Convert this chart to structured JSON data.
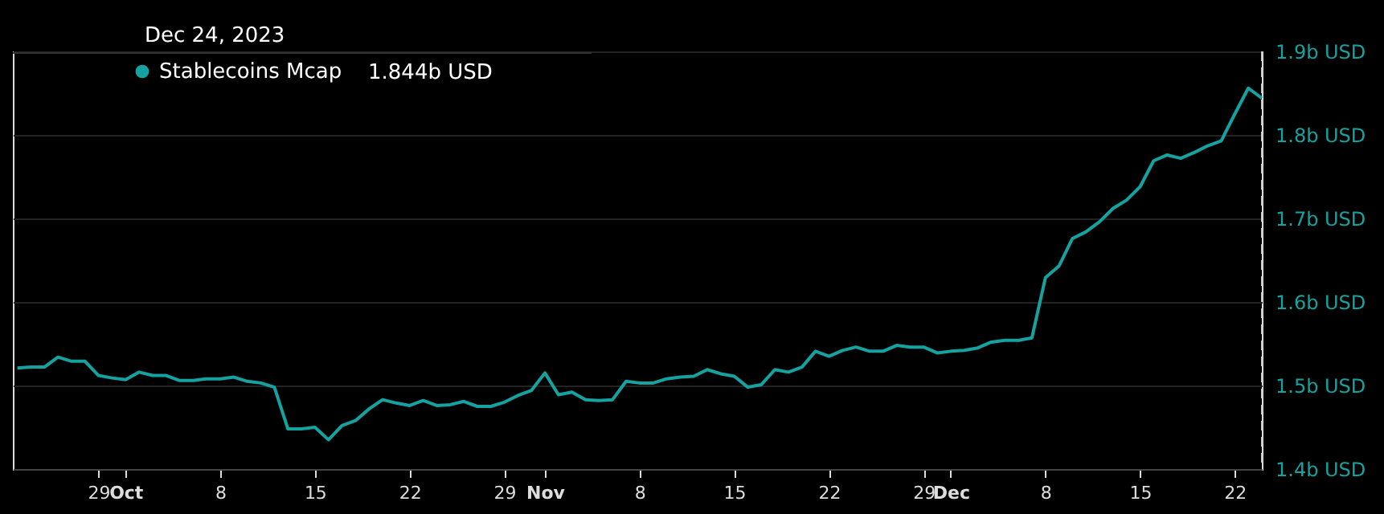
{
  "chart_data": {
    "type": "line",
    "title": "Dec 24, 2023",
    "x": [
      "2023-09-23",
      "2023-09-24",
      "2023-09-25",
      "2023-09-26",
      "2023-09-27",
      "2023-09-28",
      "2023-09-29",
      "2023-09-30",
      "2023-10-01",
      "2023-10-02",
      "2023-10-03",
      "2023-10-04",
      "2023-10-05",
      "2023-10-06",
      "2023-10-07",
      "2023-10-08",
      "2023-10-09",
      "2023-10-10",
      "2023-10-11",
      "2023-10-12",
      "2023-10-13",
      "2023-10-14",
      "2023-10-15",
      "2023-10-16",
      "2023-10-17",
      "2023-10-18",
      "2023-10-19",
      "2023-10-20",
      "2023-10-21",
      "2023-10-22",
      "2023-10-23",
      "2023-10-24",
      "2023-10-25",
      "2023-10-26",
      "2023-10-27",
      "2023-10-28",
      "2023-10-29",
      "2023-10-30",
      "2023-10-31",
      "2023-11-01",
      "2023-11-02",
      "2023-11-03",
      "2023-11-04",
      "2023-11-05",
      "2023-11-06",
      "2023-11-07",
      "2023-11-08",
      "2023-11-09",
      "2023-11-10",
      "2023-11-11",
      "2023-11-12",
      "2023-11-13",
      "2023-11-14",
      "2023-11-15",
      "2023-11-16",
      "2023-11-17",
      "2023-11-18",
      "2023-11-19",
      "2023-11-20",
      "2023-11-21",
      "2023-11-22",
      "2023-11-23",
      "2023-11-24",
      "2023-11-25",
      "2023-11-26",
      "2023-11-27",
      "2023-11-28",
      "2023-11-29",
      "2023-11-30",
      "2023-12-01",
      "2023-12-02",
      "2023-12-03",
      "2023-12-04",
      "2023-12-05",
      "2023-12-06",
      "2023-12-07",
      "2023-12-08",
      "2023-12-09",
      "2023-12-10",
      "2023-12-11",
      "2023-12-12",
      "2023-12-13",
      "2023-12-14",
      "2023-12-15",
      "2023-12-16",
      "2023-12-17",
      "2023-12-18",
      "2023-12-19",
      "2023-12-20",
      "2023-12-21",
      "2023-12-22",
      "2023-12-23",
      "2023-12-24"
    ],
    "series": [
      {
        "name": "Stablecoins Mcap",
        "color": "#14a3a0",
        "values": [
          1.521,
          1.522,
          1.522,
          1.534,
          1.529,
          1.529,
          1.512,
          1.509,
          1.507,
          1.516,
          1.512,
          1.512,
          1.506,
          1.506,
          1.508,
          1.508,
          1.51,
          1.505,
          1.503,
          1.498,
          1.448,
          1.448,
          1.45,
          1.435,
          1.452,
          1.458,
          1.472,
          1.483,
          1.479,
          1.476,
          1.482,
          1.476,
          1.477,
          1.481,
          1.475,
          1.475,
          1.48,
          1.488,
          1.494,
          1.515,
          1.489,
          1.492,
          1.483,
          1.482,
          1.483,
          1.505,
          1.503,
          1.503,
          1.508,
          1.51,
          1.511,
          1.519,
          1.514,
          1.511,
          1.498,
          1.501,
          1.519,
          1.516,
          1.522,
          1.541,
          1.535,
          1.542,
          1.546,
          1.541,
          1.541,
          1.548,
          1.546,
          1.546,
          1.539,
          1.541,
          1.542,
          1.545,
          1.552,
          1.554,
          1.554,
          1.557,
          1.629,
          1.643,
          1.676,
          1.684,
          1.696,
          1.712,
          1.722,
          1.738,
          1.769,
          1.776,
          1.772,
          1.779,
          1.787,
          1.793,
          1.825,
          1.856,
          1.844
        ]
      }
    ],
    "annotations": [
      "1.844b USD"
    ],
    "xlim": [
      "2023-09-22T16:00",
      "2023-12-24"
    ],
    "xticks": [
      {
        "value": "2023-09-29",
        "label": "29"
      },
      {
        "value": "2023-10-01",
        "label": "Oct"
      },
      {
        "value": "2023-10-08",
        "label": "8"
      },
      {
        "value": "2023-10-15",
        "label": "15"
      },
      {
        "value": "2023-10-22",
        "label": "22"
      },
      {
        "value": "2023-10-29",
        "label": "29"
      },
      {
        "value": "2023-11-01",
        "label": "Nov"
      },
      {
        "value": "2023-11-08",
        "label": "8"
      },
      {
        "value": "2023-11-15",
        "label": "15"
      },
      {
        "value": "2023-11-22",
        "label": "22"
      },
      {
        "value": "2023-11-29",
        "label": "29"
      },
      {
        "value": "2023-12-01",
        "label": "Dec"
      },
      {
        "value": "2023-12-08",
        "label": "8"
      },
      {
        "value": "2023-12-15",
        "label": "15"
      },
      {
        "value": "2023-12-22",
        "label": "22"
      }
    ],
    "ylim": [
      1.4,
      1.9
    ],
    "yticks": [
      {
        "value": 1.4,
        "label": "1.4b USD"
      },
      {
        "value": 1.5,
        "label": "1.5b USD"
      },
      {
        "value": 1.6,
        "label": "1.6b USD"
      },
      {
        "value": 1.7,
        "label": "1.7b USD"
      },
      {
        "value": 1.8,
        "label": "1.8b USD"
      },
      {
        "value": 1.9,
        "label": "1.9b USD"
      }
    ],
    "ref_lines": [
      {
        "axis": "x",
        "value": "2023-12-24",
        "label": null,
        "color": "#cccccc",
        "line_style": "dashed"
      }
    ],
    "grid": "y",
    "legend": "top left",
    "marker": "none",
    "line_style": "solid"
  }
}
